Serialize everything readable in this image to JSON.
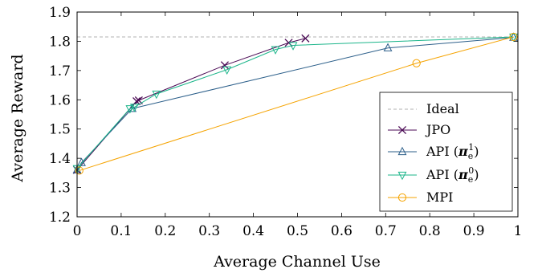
{
  "chart_data": {
    "type": "line",
    "xlabel": "Average Channel Use",
    "ylabel": "Average Reward",
    "xlim": [
      0,
      1
    ],
    "ylim": [
      1.2,
      1.9
    ],
    "x_ticks": [
      "0",
      "0.1",
      "0.2",
      "0.3",
      "0.4",
      "0.5",
      "0.6",
      "0.7",
      "0.8",
      "0.9",
      "1"
    ],
    "y_ticks": [
      "1.2",
      "1.3",
      "1.4",
      "1.5",
      "1.6",
      "1.7",
      "1.8",
      "1.9"
    ],
    "grid": false,
    "legend_position": "bottom-right",
    "series": [
      {
        "name": "Ideal",
        "color": "#999999",
        "style": "dashed",
        "marker": "none",
        "points": [
          [
            0,
            1.815
          ],
          [
            1,
            1.815
          ]
        ]
      },
      {
        "name": "JPO",
        "color": "#4b0a55",
        "style": "solid",
        "marker": "x",
        "points": [
          [
            0.0,
            1.36
          ],
          [
            0.135,
            1.595
          ],
          [
            0.14,
            1.598
          ],
          [
            0.335,
            1.718
          ],
          [
            0.48,
            1.795
          ],
          [
            0.518,
            1.81
          ]
        ]
      },
      {
        "name": "API",
        "name_sup": "1",
        "color": "#2c5f8a",
        "style": "solid",
        "marker": "triangle-up",
        "points": [
          [
            0.0,
            1.36
          ],
          [
            0.01,
            1.385
          ],
          [
            0.125,
            1.57
          ],
          [
            0.705,
            1.777
          ],
          [
            0.99,
            1.813
          ]
        ]
      },
      {
        "name": "API",
        "name_sup": "0",
        "color": "#1bb58a",
        "style": "solid",
        "marker": "triangle-down",
        "points": [
          [
            0.0,
            1.365
          ],
          [
            0.12,
            1.57
          ],
          [
            0.13,
            1.575
          ],
          [
            0.18,
            1.62
          ],
          [
            0.34,
            1.703
          ],
          [
            0.45,
            1.772
          ],
          [
            0.49,
            1.786
          ],
          [
            0.99,
            1.815
          ]
        ]
      },
      {
        "name": "MPI",
        "color": "#f5a300",
        "style": "solid",
        "marker": "circle",
        "points": [
          [
            0.005,
            1.358
          ],
          [
            0.77,
            1.725
          ],
          [
            0.99,
            1.815
          ]
        ]
      }
    ]
  }
}
